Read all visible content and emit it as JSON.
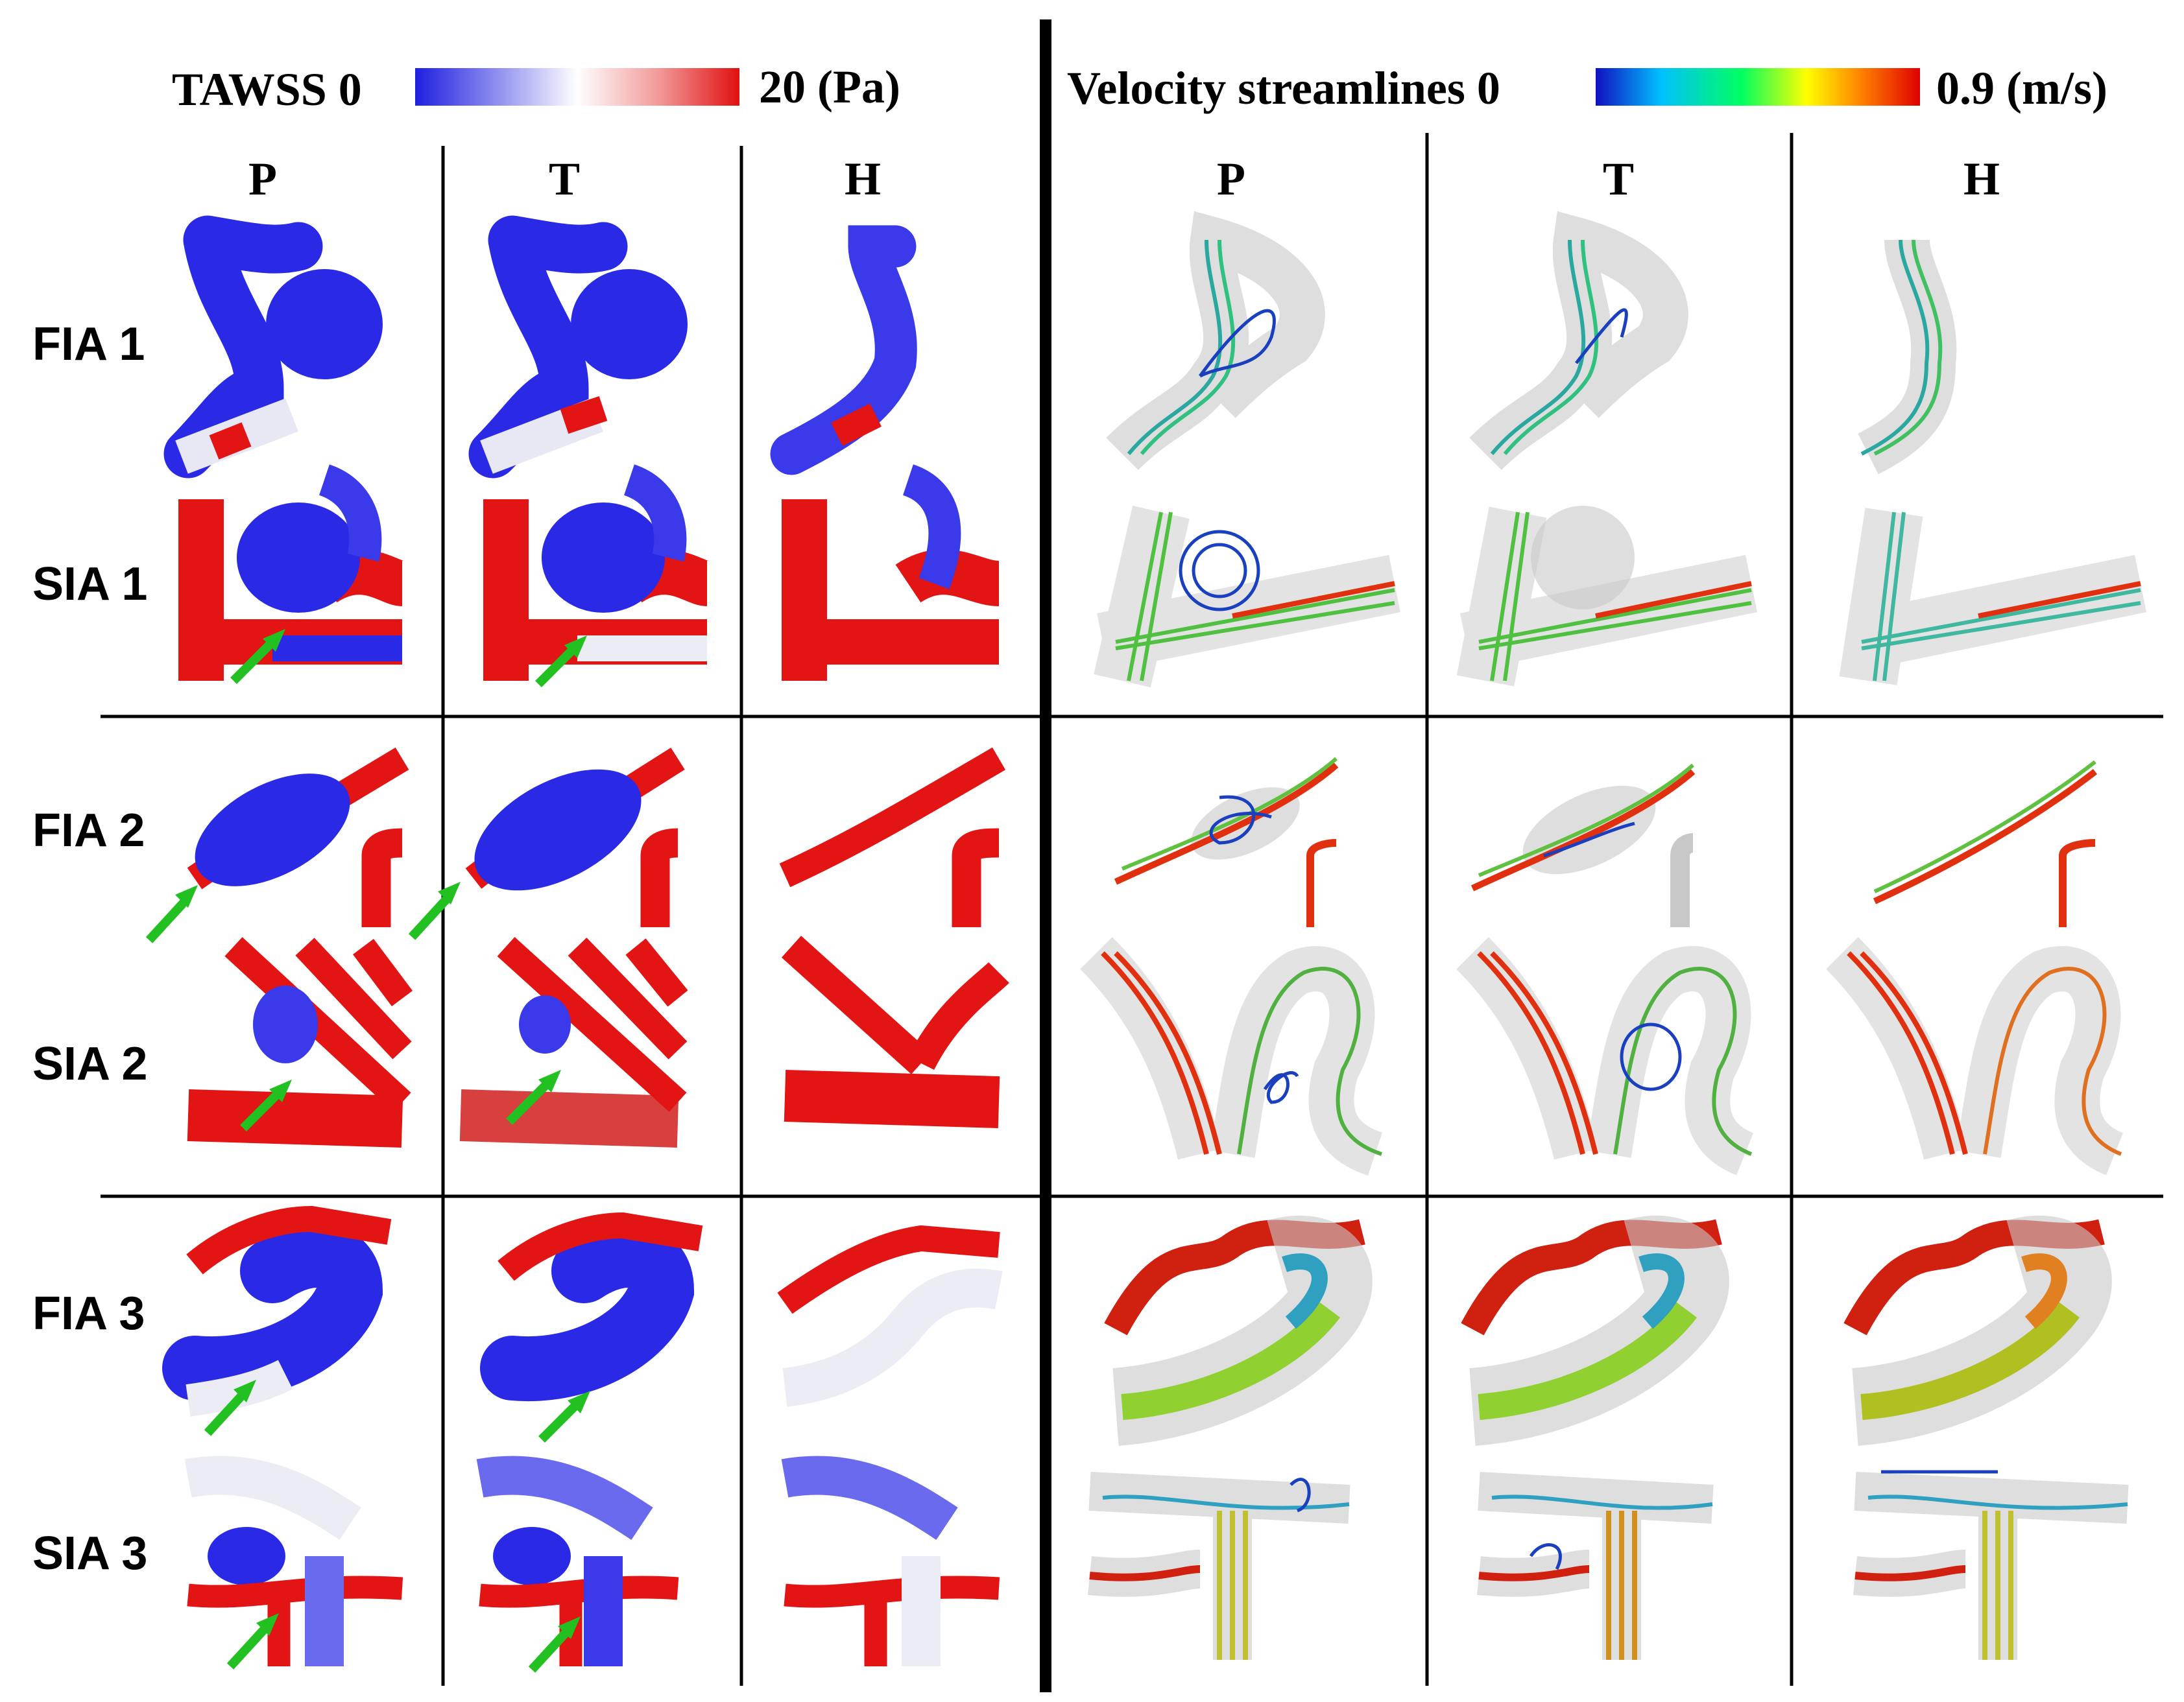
{
  "legend_left": {
    "title": "TAWSS 0",
    "max_label": "20 (Pa)",
    "stops": [
      "#1f1fe0",
      "#8e8ef0",
      "#ffffff",
      "#f29a9a",
      "#e01010"
    ]
  },
  "legend_right": {
    "title": "Velocity streamlines 0",
    "max_label": "0.9 (m/s)",
    "stops": [
      "#1010c0",
      "#00c0ff",
      "#00ff60",
      "#ffff00",
      "#ff8000",
      "#e00000"
    ]
  },
  "columns": {
    "tawss": [
      "P",
      "T",
      "H"
    ],
    "velocity": [
      "P",
      "T",
      "H"
    ]
  },
  "rows": [
    "FIA 1",
    "SIA 1",
    "FIA 2",
    "SIA 2",
    "FIA 3",
    "SIA 3"
  ],
  "colors": {
    "arrow": "#22c020",
    "vessel_blue": "#2a2ae6",
    "vessel_red": "#e21414",
    "vessel_white": "#ececf4",
    "wall_gray": "#c8c8c8",
    "divider": "#000000"
  }
}
